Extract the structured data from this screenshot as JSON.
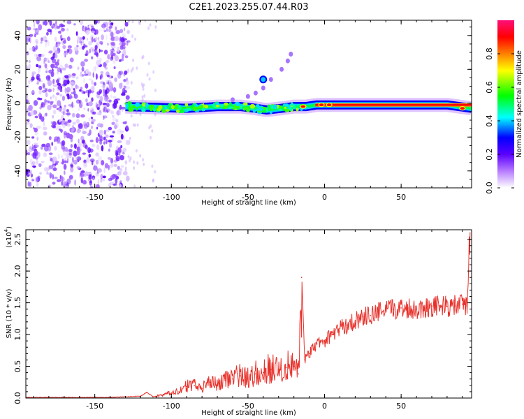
{
  "title": "C2E1.2023.255.07.44.R03",
  "chart_data": [
    {
      "type": "heatmap",
      "xlabel": "Height of straight line (km)",
      "ylabel": "Frequency (Hz)",
      "xlim": [
        -195,
        96
      ],
      "ylim": [
        -50,
        49
      ],
      "x_ticks": [
        -150,
        -100,
        -50,
        0,
        50
      ],
      "x_tick_labels": [
        "-150",
        "-100",
        "-50",
        "0",
        "50"
      ],
      "y_ticks": [
        -40,
        -20,
        0,
        20,
        40
      ],
      "y_tick_labels": [
        "-40",
        "-20",
        "0",
        "20",
        "40"
      ],
      "colorbar": {
        "label": "Normalized spectral amplitude",
        "range": [
          0,
          1
        ],
        "ticks": [
          0.0,
          0.2,
          0.4,
          0.6,
          0.8
        ],
        "tick_labels": [
          "0.0",
          "0.2",
          "0.4",
          "0.6",
          "0.8"
        ],
        "colors": [
          "#ffffff",
          "#b77cff",
          "#5b00ff",
          "#0000ff",
          "#00ffff",
          "#00ff00",
          "#ffff00",
          "#ff8000",
          "#ff0000",
          "#ff00aa"
        ]
      },
      "features": {
        "noise_region_x": [
          -195,
          -128
        ],
        "signal_band": {
          "x": [
            -130,
            -110,
            -90,
            -70,
            -55,
            -45,
            -38,
            -28,
            -20,
            -12,
            -5,
            0,
            20,
            40,
            60,
            80,
            96
          ],
          "freq_hz": [
            -2,
            -2.5,
            -3,
            -2,
            -2,
            -3,
            -4,
            -3,
            -2,
            -2,
            -1,
            -1,
            -1,
            -1,
            -1,
            -1,
            -3
          ]
        },
        "weak_trace": {
          "x": [
            -60,
            -50,
            -45,
            -40,
            -35,
            -28,
            -24,
            -22
          ],
          "freq_hz": [
            2,
            4,
            6,
            9,
            14,
            20,
            25,
            29
          ]
        }
      },
      "grid": false
    },
    {
      "type": "line",
      "xlabel": "Height of straight line (km)",
      "ylabel": "SNR (10 * v/v)",
      "y_scale_label": "(x10",
      "y_scale_exponent": "4",
      "xlim": [
        -195,
        96
      ],
      "ylim": [
        0,
        2.65
      ],
      "x_ticks": [
        -150,
        -100,
        -50,
        0,
        50
      ],
      "x_tick_labels": [
        "-150",
        "-100",
        "-50",
        "0",
        "50"
      ],
      "y_ticks": [
        0.0,
        0.5,
        1.0,
        1.5,
        2.0,
        2.5
      ],
      "y_tick_labels": [
        "0.0",
        "0.5",
        "1.0",
        "1.5",
        "2.0",
        "2.5"
      ],
      "series": [
        {
          "color": "#e8312b",
          "x": [
            -195,
            -180,
            -160,
            -140,
            -130,
            -120,
            -116,
            -112,
            -105,
            -100,
            -95,
            -90,
            -85,
            -80,
            -75,
            -70,
            -65,
            -60,
            -55,
            -50,
            -45,
            -40,
            -35,
            -30,
            -25,
            -20,
            -17,
            -15,
            -13,
            -10,
            -5,
            0,
            5,
            10,
            15,
            20,
            25,
            30,
            35,
            40,
            45,
            50,
            55,
            60,
            65,
            70,
            75,
            80,
            85,
            90,
            93,
            95
          ],
          "y": [
            0.01,
            0.01,
            0.01,
            0.01,
            0.02,
            0.03,
            0.09,
            0.02,
            0.05,
            0.08,
            0.1,
            0.18,
            0.2,
            0.15,
            0.25,
            0.22,
            0.28,
            0.3,
            0.35,
            0.3,
            0.38,
            0.4,
            0.45,
            0.45,
            0.48,
            0.5,
            0.38,
            1.9,
            0.6,
            0.7,
            0.85,
            0.9,
            1.0,
            1.1,
            1.15,
            1.22,
            1.28,
            1.3,
            1.35,
            1.38,
            1.4,
            1.42,
            1.42,
            1.4,
            1.42,
            1.45,
            1.45,
            1.44,
            1.45,
            1.48,
            1.45,
            2.6
          ]
        }
      ],
      "grid": false
    }
  ]
}
